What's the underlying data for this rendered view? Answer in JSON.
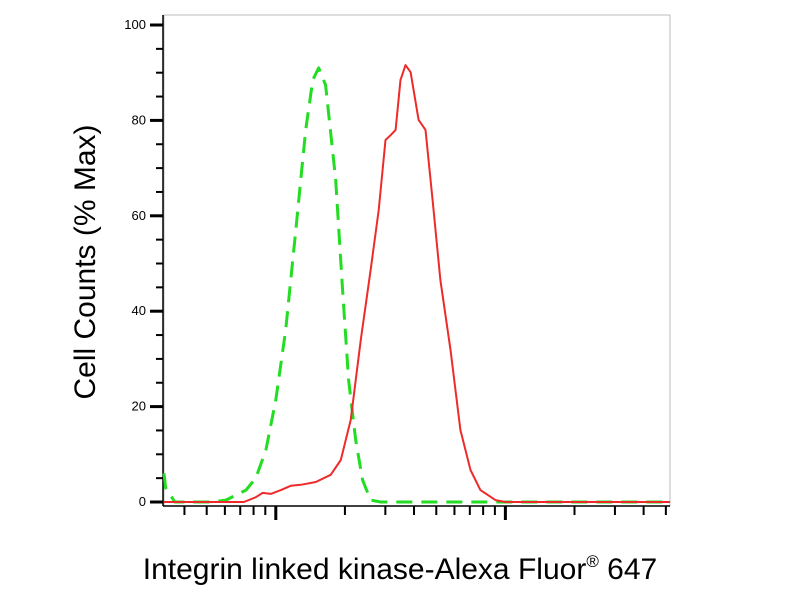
{
  "chart_data": {
    "type": "line",
    "title": "",
    "xlabel_main": "Integrin linked kinase-Alexa Fluor",
    "xlabel_sup": "®",
    "xlabel_tail": " 647",
    "ylabel": "Cell Counts (% Max)",
    "x_scale": "log",
    "xlim": [
      0.513,
      2.717
    ],
    "x_major_ticks": [
      1,
      2
    ],
    "ylim": [
      0,
      100
    ],
    "y_ticks": [
      0,
      20,
      40,
      60,
      80,
      100
    ],
    "y_tick_labels": [
      "0",
      "20",
      "40",
      "60",
      "80",
      "100"
    ],
    "y_minor_step": 5,
    "grid": false,
    "legend": "none",
    "series": [
      {
        "color": "#22dd22",
        "style": "dashed",
        "points": [
          [
            0.513,
            6
          ],
          [
            0.52,
            3
          ],
          [
            0.56,
            0
          ],
          [
            0.717,
            0
          ],
          [
            0.783,
            0.4
          ],
          [
            0.87,
            2.5
          ],
          [
            0.913,
            5
          ],
          [
            0.957,
            10.9
          ],
          [
            1.0,
            21.4
          ],
          [
            1.043,
            36.1
          ],
          [
            1.087,
            57
          ],
          [
            1.13,
            78
          ],
          [
            1.161,
            88.5
          ],
          [
            1.187,
            91
          ],
          [
            1.217,
            87.4
          ],
          [
            1.261,
            67.5
          ],
          [
            1.291,
            44.4
          ],
          [
            1.317,
            25.6
          ],
          [
            1.348,
            13
          ],
          [
            1.378,
            4.6
          ],
          [
            1.413,
            0.4
          ],
          [
            1.457,
            0
          ],
          [
            2.717,
            0
          ]
        ]
      },
      {
        "color": "#ee2a2a",
        "style": "solid",
        "points": [
          [
            0.513,
            0
          ],
          [
            0.861,
            0
          ],
          [
            0.913,
            1
          ],
          [
            0.943,
            1.9
          ],
          [
            0.978,
            1.7
          ],
          [
            1.022,
            2.5
          ],
          [
            1.065,
            3.4
          ],
          [
            1.109,
            3.6
          ],
          [
            1.174,
            4.2
          ],
          [
            1.239,
            5.7
          ],
          [
            1.283,
            8.8
          ],
          [
            1.326,
            17.2
          ],
          [
            1.37,
            34
          ],
          [
            1.413,
            48.6
          ],
          [
            1.448,
            61.2
          ],
          [
            1.478,
            75.9
          ],
          [
            1.5,
            76.9
          ],
          [
            1.522,
            78
          ],
          [
            1.543,
            88.5
          ],
          [
            1.565,
            91.6
          ],
          [
            1.587,
            90.1
          ],
          [
            1.622,
            80.1
          ],
          [
            1.652,
            78
          ],
          [
            1.683,
            63.3
          ],
          [
            1.717,
            46.5
          ],
          [
            1.761,
            31.9
          ],
          [
            1.804,
            15.1
          ],
          [
            1.848,
            6.7
          ],
          [
            1.891,
            2.5
          ],
          [
            1.957,
            0.4
          ],
          [
            2.0,
            0
          ],
          [
            2.717,
            0
          ]
        ]
      }
    ]
  }
}
